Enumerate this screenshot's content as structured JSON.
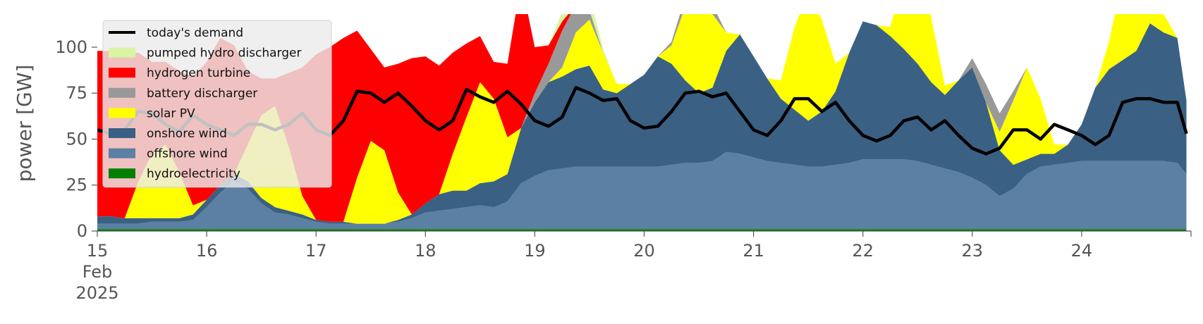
{
  "chart_data": {
    "type": "area",
    "title": "",
    "xlabel": "",
    "ylabel": "power [GW]",
    "ylim": [
      0,
      118
    ],
    "xlim": [
      "2025-02-15 00:00",
      "2025-02-25 00:00"
    ],
    "grid": false,
    "legend_position": "top-left",
    "x_ticks": [
      {
        "date": "2025-02-15",
        "label": "15",
        "sub": [
          "Feb",
          "2025"
        ]
      },
      {
        "date": "2025-02-16",
        "label": "16"
      },
      {
        "date": "2025-02-17",
        "label": "17"
      },
      {
        "date": "2025-02-18",
        "label": "18"
      },
      {
        "date": "2025-02-19",
        "label": "19"
      },
      {
        "date": "2025-02-20",
        "label": "20"
      },
      {
        "date": "2025-02-21",
        "label": "21"
      },
      {
        "date": "2025-02-22",
        "label": "22"
      },
      {
        "date": "2025-02-23",
        "label": "23"
      },
      {
        "date": "2025-02-24",
        "label": "24"
      }
    ],
    "y_ticks": [
      0,
      25,
      50,
      75,
      100
    ],
    "time_step_hours": 3,
    "x": [
      "2025-02-15 00:00",
      "2025-02-15 03:00",
      "2025-02-15 06:00",
      "2025-02-15 09:00",
      "2025-02-15 12:00",
      "2025-02-15 15:00",
      "2025-02-15 18:00",
      "2025-02-15 21:00",
      "2025-02-16 00:00",
      "2025-02-16 03:00",
      "2025-02-16 06:00",
      "2025-02-16 09:00",
      "2025-02-16 12:00",
      "2025-02-16 15:00",
      "2025-02-16 18:00",
      "2025-02-16 21:00",
      "2025-02-17 00:00",
      "2025-02-17 03:00",
      "2025-02-17 06:00",
      "2025-02-17 09:00",
      "2025-02-17 12:00",
      "2025-02-17 15:00",
      "2025-02-17 18:00",
      "2025-02-17 21:00",
      "2025-02-18 00:00",
      "2025-02-18 03:00",
      "2025-02-18 06:00",
      "2025-02-18 09:00",
      "2025-02-18 12:00",
      "2025-02-18 15:00",
      "2025-02-18 18:00",
      "2025-02-18 21:00",
      "2025-02-19 00:00",
      "2025-02-19 03:00",
      "2025-02-19 06:00",
      "2025-02-19 09:00",
      "2025-02-19 12:00",
      "2025-02-19 15:00",
      "2025-02-19 18:00",
      "2025-02-19 21:00",
      "2025-02-20 00:00",
      "2025-02-20 03:00",
      "2025-02-20 06:00",
      "2025-02-20 09:00",
      "2025-02-20 12:00",
      "2025-02-20 15:00",
      "2025-02-20 18:00",
      "2025-02-20 21:00",
      "2025-02-21 00:00",
      "2025-02-21 03:00",
      "2025-02-21 06:00",
      "2025-02-21 09:00",
      "2025-02-21 12:00",
      "2025-02-21 15:00",
      "2025-02-21 18:00",
      "2025-02-21 21:00",
      "2025-02-22 00:00",
      "2025-02-22 03:00",
      "2025-02-22 06:00",
      "2025-02-22 09:00",
      "2025-02-22 12:00",
      "2025-02-22 15:00",
      "2025-02-22 18:00",
      "2025-02-22 21:00",
      "2025-02-23 00:00",
      "2025-02-23 03:00",
      "2025-02-23 06:00",
      "2025-02-23 09:00",
      "2025-02-23 12:00",
      "2025-02-23 15:00",
      "2025-02-23 18:00",
      "2025-02-23 21:00",
      "2025-02-24 00:00",
      "2025-02-24 03:00",
      "2025-02-24 06:00",
      "2025-02-24 09:00",
      "2025-02-24 12:00",
      "2025-02-24 15:00",
      "2025-02-24 18:00",
      "2025-02-24 21:00",
      "2025-02-24 23:00"
    ],
    "series": [
      {
        "name": "hydroelectricity",
        "color": "#008000",
        "values": [
          1,
          1,
          1,
          1,
          1,
          1,
          1,
          1,
          1,
          1,
          1,
          1,
          1,
          1,
          1,
          1,
          1,
          1,
          1,
          1,
          1,
          1,
          1,
          1,
          1,
          1,
          1,
          1,
          1,
          1,
          1,
          1,
          1,
          1,
          1,
          1,
          1,
          1,
          1,
          1,
          1,
          1,
          1,
          1,
          1,
          1,
          1,
          1,
          1,
          1,
          1,
          1,
          1,
          1,
          1,
          1,
          1,
          1,
          1,
          1,
          1,
          1,
          1,
          1,
          1,
          1,
          1,
          1,
          1,
          1,
          1,
          1,
          1,
          1,
          1,
          1,
          1,
          1,
          1,
          1,
          1
        ]
      },
      {
        "name": "offshore wind",
        "color": "#5b80a3",
        "values": [
          3,
          3,
          3,
          3,
          4,
          4,
          4,
          5,
          12,
          20,
          26,
          22,
          14,
          9,
          8,
          6,
          4,
          3,
          3,
          3,
          3,
          3,
          4,
          6,
          9,
          10,
          11,
          12,
          13,
          12,
          15,
          25,
          29,
          32,
          33,
          34,
          34,
          34,
          34,
          34,
          34,
          34,
          35,
          36,
          36,
          37,
          42,
          41,
          39,
          37,
          36,
          35,
          34,
          34,
          35,
          36,
          38,
          38,
          38,
          38,
          37,
          35,
          33,
          31,
          28,
          24,
          18,
          22,
          30,
          34,
          35,
          36,
          37,
          37,
          37,
          37,
          37,
          37,
          37,
          36,
          30
        ]
      },
      {
        "name": "onshore wind",
        "color": "#3a6184",
        "values": [
          4,
          4,
          3,
          3,
          2,
          2,
          2,
          3,
          4,
          4,
          4,
          4,
          3,
          3,
          2,
          2,
          1,
          1,
          1,
          0,
          0,
          0,
          1,
          2,
          5,
          9,
          10,
          9,
          12,
          14,
          15,
          30,
          40,
          48,
          50,
          53,
          55,
          42,
          40,
          45,
          50,
          60,
          55,
          45,
          38,
          40,
          55,
          65,
          55,
          45,
          35,
          30,
          25,
          30,
          40,
          60,
          75,
          73,
          67,
          60,
          53,
          45,
          40,
          50,
          60,
          45,
          25,
          13,
          8,
          7,
          6,
          10,
          20,
          40,
          50,
          55,
          60,
          75,
          70,
          68,
          40
        ]
      },
      {
        "name": "solar PV",
        "color": "#ffff00",
        "values": [
          0,
          0,
          0,
          20,
          35,
          40,
          25,
          5,
          0,
          0,
          0,
          20,
          45,
          55,
          35,
          10,
          0,
          0,
          0,
          25,
          45,
          40,
          15,
          0,
          0,
          0,
          20,
          40,
          55,
          45,
          20,
          0,
          0,
          0,
          5,
          20,
          25,
          20,
          5,
          0,
          0,
          0,
          10,
          40,
          60,
          40,
          10,
          0,
          0,
          0,
          10,
          45,
          70,
          50,
          15,
          0,
          0,
          0,
          5,
          40,
          60,
          35,
          5,
          0,
          0,
          0,
          10,
          35,
          50,
          30,
          5,
          0,
          0,
          0,
          15,
          45,
          60,
          40,
          10,
          0,
          0
        ]
      },
      {
        "name": "battery discharger",
        "color": "#999999",
        "values": [
          0,
          0,
          0,
          0,
          0,
          0,
          0,
          0,
          0,
          0,
          0,
          0,
          0,
          0,
          0,
          0,
          0,
          0,
          0,
          0,
          0,
          0,
          0,
          0,
          0,
          0,
          0,
          0,
          0,
          0,
          0,
          0,
          5,
          10,
          20,
          15,
          5,
          0,
          0,
          0,
          0,
          0,
          2,
          5,
          8,
          5,
          0,
          0,
          0,
          0,
          0,
          0,
          0,
          0,
          0,
          0,
          0,
          0,
          0,
          0,
          0,
          0,
          0,
          0,
          5,
          10,
          10,
          5,
          0,
          0,
          0,
          0,
          0,
          0,
          0,
          0,
          0,
          0,
          0,
          0,
          0
        ]
      },
      {
        "name": "hydrogen turbine",
        "color": "#ff0000",
        "values": [
          90,
          90,
          90,
          70,
          50,
          45,
          55,
          70,
          75,
          80,
          70,
          40,
          20,
          15,
          40,
          70,
          90,
          95,
          100,
          80,
          50,
          45,
          70,
          85,
          80,
          70,
          55,
          40,
          25,
          20,
          40,
          80,
          25,
          10,
          5,
          0,
          0,
          0,
          0,
          0,
          0,
          0,
          0,
          0,
          0,
          0,
          0,
          0,
          0,
          0,
          0,
          0,
          0,
          0,
          0,
          0,
          0,
          0,
          0,
          0,
          0,
          0,
          0,
          0,
          0,
          0,
          0,
          0,
          0,
          0,
          0,
          0,
          0,
          0,
          0,
          0,
          0,
          0,
          0,
          0,
          0
        ]
      },
      {
        "name": "pumped hydro discharger",
        "color": "#d8f5a2",
        "values": [
          0,
          0,
          0,
          0,
          0,
          0,
          0,
          0,
          0,
          0,
          0,
          0,
          0,
          0,
          0,
          0,
          0,
          0,
          0,
          0,
          0,
          0,
          0,
          0,
          0,
          0,
          0,
          0,
          0,
          0,
          0,
          0,
          0,
          0,
          5,
          10,
          8,
          2,
          0,
          0,
          0,
          0,
          0,
          0,
          0,
          0,
          0,
          0,
          0,
          0,
          0,
          0,
          0,
          0,
          0,
          0,
          0,
          0,
          0,
          0,
          0,
          0,
          0,
          0,
          0,
          0,
          0,
          0,
          0,
          0,
          0,
          0,
          0,
          0,
          0,
          0,
          0,
          0,
          0,
          0,
          0
        ]
      },
      {
        "name": "today's demand",
        "color": "#000000",
        "kind": "line",
        "values": [
          55,
          53,
          55,
          65,
          64,
          58,
          54,
          63,
          58,
          55,
          52,
          58,
          58,
          55,
          58,
          64,
          55,
          52,
          60,
          76,
          75,
          70,
          75,
          68,
          60,
          55,
          60,
          77,
          73,
          70,
          76,
          69,
          60,
          57,
          62,
          78,
          75,
          71,
          72,
          60,
          56,
          57,
          65,
          75,
          76,
          73,
          75,
          65,
          55,
          52,
          60,
          72,
          72,
          65,
          70,
          60,
          52,
          49,
          52,
          60,
          62,
          55,
          60,
          52,
          45,
          42,
          45,
          55,
          55,
          50,
          58,
          55,
          52,
          47,
          52,
          70,
          72,
          72,
          70,
          70,
          53
        ]
      }
    ]
  },
  "legend": {
    "items": [
      {
        "label": "today's demand",
        "color": "#000000",
        "kind": "line"
      },
      {
        "label": "pumped hydro discharger",
        "color": "#d8f5a2",
        "kind": "patch"
      },
      {
        "label": "hydrogen turbine",
        "color": "#ff0000",
        "kind": "patch"
      },
      {
        "label": "battery discharger",
        "color": "#999999",
        "kind": "patch"
      },
      {
        "label": "solar PV",
        "color": "#ffff00",
        "kind": "patch"
      },
      {
        "label": "onshore wind",
        "color": "#3a6184",
        "kind": "patch"
      },
      {
        "label": "offshore wind",
        "color": "#5b80a3",
        "kind": "patch"
      },
      {
        "label": "hydroelectricity",
        "color": "#008000",
        "kind": "patch"
      }
    ]
  }
}
